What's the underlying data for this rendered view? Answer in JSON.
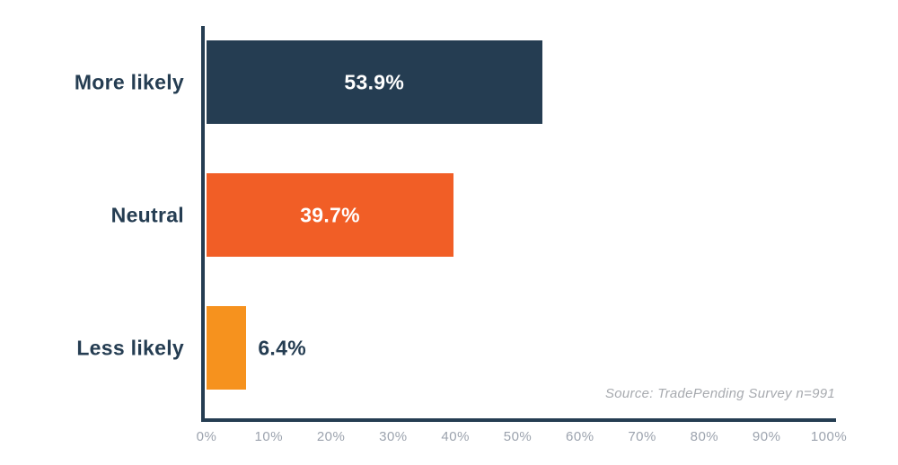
{
  "chart_data": {
    "type": "bar",
    "orientation": "horizontal",
    "title": "",
    "xlabel": "",
    "ylabel": "",
    "categories": [
      "More likely",
      "Neutral",
      "Less likely"
    ],
    "values": [
      53.9,
      39.7,
      6.4
    ],
    "value_labels": [
      "53.9%",
      "39.7%",
      "6.4%"
    ],
    "bar_colors": [
      "#253D52",
      "#F15E26",
      "#F6921E"
    ],
    "value_label_placement": [
      "inside",
      "inside",
      "outside"
    ],
    "xlim": [
      0,
      100
    ],
    "x_tick_labels": [
      "0%",
      "10%",
      "20%",
      "30%",
      "40%",
      "50%",
      "60%",
      "70%",
      "80%",
      "90%",
      "100%"
    ],
    "grid": false,
    "legend": false,
    "source_note": "Source: TradePending Survey n=991"
  },
  "colors": {
    "axis": "#253D52",
    "category_text": "#253D52",
    "value_text_inside": "#FFFFFF",
    "value_text_outside": "#253D52",
    "tick_text": "#9CA3AE",
    "source_text": "#A7AAAF",
    "background": "#FFFFFF"
  }
}
